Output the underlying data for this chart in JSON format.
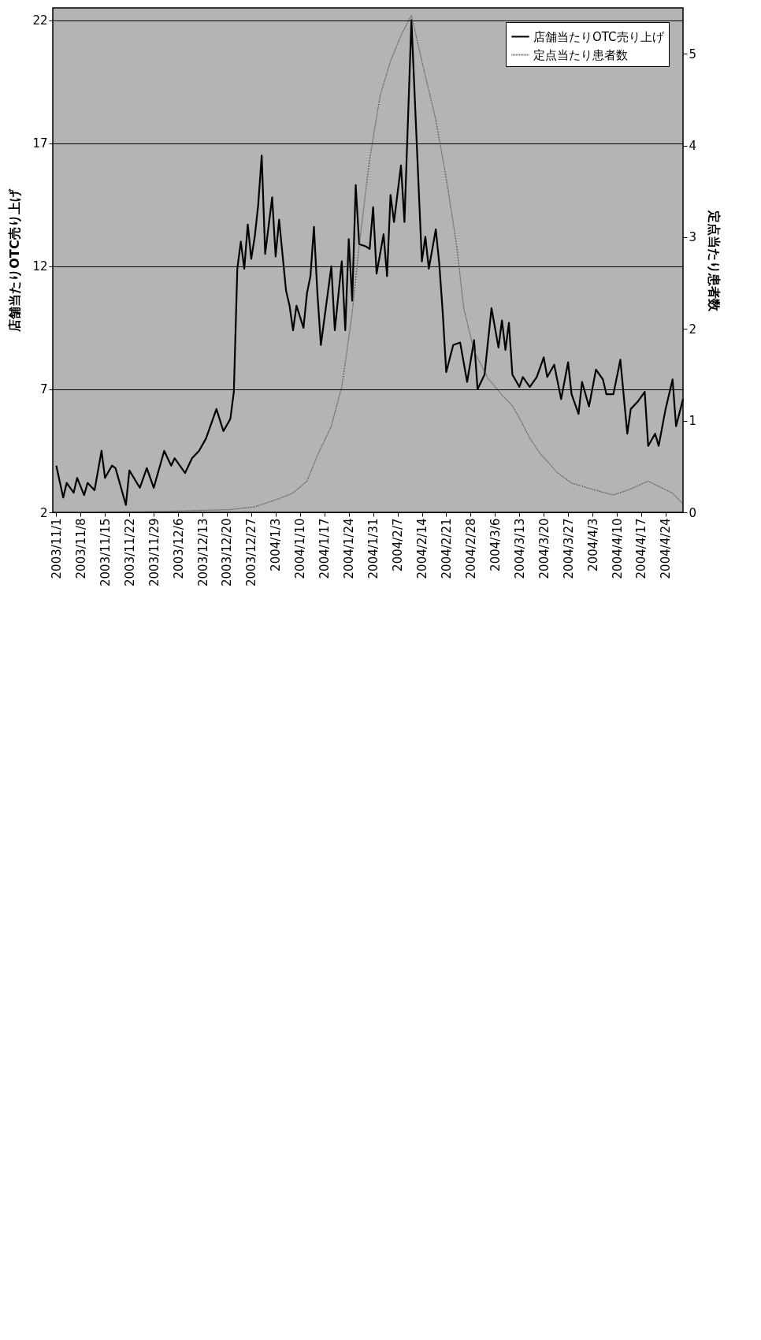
{
  "chart_data": {
    "type": "line",
    "ylabel": "店舗当たりOTC売り上げ",
    "y2label": "定点当たり患者数",
    "xlim": [
      "2003-10-31",
      "2004-04-29"
    ],
    "xticks": [
      {
        "value": "2003-11-01",
        "label": "2003/11/1"
      },
      {
        "value": "2003-11-08",
        "label": "2003/11/8"
      },
      {
        "value": "2003-11-15",
        "label": "2003/11/15"
      },
      {
        "value": "2003-11-22",
        "label": "2003/11/22"
      },
      {
        "value": "2003-11-29",
        "label": "2003/11/29"
      },
      {
        "value": "2003-12-06",
        "label": "2003/12/6"
      },
      {
        "value": "2003-12-13",
        "label": "2003/12/13"
      },
      {
        "value": "2003-12-20",
        "label": "2003/12/20"
      },
      {
        "value": "2003-12-27",
        "label": "2003/12/27"
      },
      {
        "value": "2004-01-03",
        "label": "2004/1/3"
      },
      {
        "value": "2004-01-10",
        "label": "2004/1/10"
      },
      {
        "value": "2004-01-17",
        "label": "2004/1/17"
      },
      {
        "value": "2004-01-24",
        "label": "2004/1/24"
      },
      {
        "value": "2004-01-31",
        "label": "2004/1/31"
      },
      {
        "value": "2004-02-07",
        "label": "2004/2/7"
      },
      {
        "value": "2004-02-14",
        "label": "2004/2/14"
      },
      {
        "value": "2004-02-21",
        "label": "2004/2/21"
      },
      {
        "value": "2004-02-28",
        "label": "2004/2/28"
      },
      {
        "value": "2004-03-06",
        "label": "2004/3/6"
      },
      {
        "value": "2004-03-13",
        "label": "2004/3/13"
      },
      {
        "value": "2004-03-20",
        "label": "2004/3/20"
      },
      {
        "value": "2004-03-27",
        "label": "2004/3/27"
      },
      {
        "value": "2004-04-03",
        "label": "2004/4/3"
      },
      {
        "value": "2004-04-10",
        "label": "2004/4/10"
      },
      {
        "value": "2004-04-17",
        "label": "2004/4/17"
      },
      {
        "value": "2004-04-24",
        "label": "2004/4/24"
      }
    ],
    "ylim": [
      2,
      22.5
    ],
    "yticks": [
      2,
      7,
      12,
      17,
      22
    ],
    "y2lim": [
      0,
      5.5
    ],
    "y2ticks": [
      0,
      1,
      2,
      3,
      4,
      5
    ],
    "grid": "y",
    "legend": "top right",
    "series": [
      {
        "name": "店舗当たりOTC売り上げ",
        "color": "#000000",
        "line_style": "solid",
        "x": [
          "2003-11-01",
          "2003-11-03",
          "2003-11-04",
          "2003-11-06",
          "2003-11-07",
          "2003-11-09",
          "2003-11-10",
          "2003-11-12",
          "2003-11-14",
          "2003-11-15",
          "2003-11-17",
          "2003-11-18",
          "2003-11-21",
          "2003-11-22",
          "2003-11-25",
          "2003-11-27",
          "2003-11-29",
          "2003-12-02",
          "2003-12-04",
          "2003-12-05",
          "2003-12-08",
          "2003-12-10",
          "2003-12-12",
          "2003-12-14",
          "2003-12-17",
          "2003-12-19",
          "2003-12-21",
          "2003-12-22",
          "2003-12-23",
          "2003-12-24",
          "2003-12-25",
          "2003-12-26",
          "2003-12-27",
          "2003-12-28",
          "2003-12-29",
          "2003-12-30",
          "2003-12-31",
          "2004-01-02",
          "2004-01-03",
          "2004-01-04",
          "2004-01-06",
          "2004-01-07",
          "2004-01-08",
          "2004-01-09",
          "2004-01-11",
          "2004-01-12",
          "2004-01-13",
          "2004-01-14",
          "2004-01-15",
          "2004-01-16",
          "2004-01-19",
          "2004-01-20",
          "2004-01-22",
          "2004-01-23",
          "2004-01-24",
          "2004-01-25",
          "2004-01-26",
          "2004-01-27",
          "2004-01-29",
          "2004-01-30",
          "2004-01-31",
          "2004-02-01",
          "2004-02-03",
          "2004-02-04",
          "2004-02-05",
          "2004-02-06",
          "2004-02-08",
          "2004-02-09",
          "2004-02-11",
          "2004-02-14",
          "2004-02-15",
          "2004-02-16",
          "2004-02-18",
          "2004-02-19",
          "2004-02-20",
          "2004-02-21",
          "2004-02-23",
          "2004-02-25",
          "2004-02-27",
          "2004-02-29",
          "2004-03-01",
          "2004-03-03",
          "2004-03-05",
          "2004-03-07",
          "2004-03-08",
          "2004-03-09",
          "2004-03-10",
          "2004-03-11",
          "2004-03-13",
          "2004-03-14",
          "2004-03-16",
          "2004-03-18",
          "2004-03-20",
          "2004-03-21",
          "2004-03-23",
          "2004-03-25",
          "2004-03-27",
          "2004-03-28",
          "2004-03-30",
          "2004-03-31",
          "2004-04-02",
          "2004-04-04",
          "2004-04-06",
          "2004-04-07",
          "2004-04-09",
          "2004-04-11",
          "2004-04-13",
          "2004-04-14",
          "2004-04-16",
          "2004-04-18",
          "2004-04-19",
          "2004-04-21",
          "2004-04-22",
          "2004-04-24",
          "2004-04-26",
          "2004-04-27",
          "2004-04-29"
        ],
        "values": [
          3.9,
          2.6,
          3.2,
          2.8,
          3.4,
          2.7,
          3.2,
          2.9,
          4.5,
          3.4,
          3.9,
          3.8,
          2.3,
          3.7,
          3.0,
          3.8,
          3.0,
          4.5,
          3.9,
          4.2,
          3.6,
          4.2,
          4.5,
          5.0,
          6.2,
          5.3,
          5.8,
          6.9,
          11.9,
          13.0,
          11.9,
          13.7,
          12.3,
          13.2,
          14.5,
          16.5,
          12.5,
          14.8,
          12.4,
          13.9,
          11.0,
          10.4,
          9.4,
          10.4,
          9.5,
          10.9,
          11.6,
          13.6,
          10.9,
          8.8,
          12.0,
          9.4,
          12.2,
          9.4,
          13.1,
          10.6,
          15.3,
          12.9,
          12.8,
          12.7,
          14.4,
          11.7,
          13.3,
          11.6,
          14.9,
          13.8,
          16.1,
          13.8,
          22.0,
          12.2,
          13.2,
          11.9,
          13.5,
          12.1,
          10.1,
          7.7,
          8.8,
          8.9,
          7.3,
          9.0,
          7.0,
          7.6,
          10.3,
          8.7,
          9.8,
          8.6,
          9.7,
          7.6,
          7.1,
          7.5,
          7.1,
          7.5,
          8.3,
          7.5,
          8.0,
          6.6,
          8.1,
          6.8,
          6.0,
          7.3,
          6.3,
          7.8,
          7.4,
          6.8,
          6.8,
          8.2,
          5.2,
          6.2,
          6.5,
          6.9,
          4.7,
          5.2,
          4.7,
          6.2,
          7.4,
          5.5,
          6.6
        ]
      },
      {
        "name": "定点当たり患者数",
        "color": "#505050",
        "line_style": "dotted",
        "axis": "y2",
        "x": [
          "2003-11-01",
          "2003-12-01",
          "2003-12-21",
          "2003-12-28",
          "2004-01-04",
          "2004-01-08",
          "2004-01-12",
          "2004-01-15",
          "2004-01-19",
          "2004-01-22",
          "2004-01-23",
          "2004-01-25",
          "2004-01-27",
          "2004-01-30",
          "2004-02-02",
          "2004-02-05",
          "2004-02-08",
          "2004-02-11",
          "2004-02-14",
          "2004-02-18",
          "2004-02-21",
          "2004-02-24",
          "2004-02-26",
          "2004-02-29",
          "2004-03-04",
          "2004-03-08",
          "2004-03-11",
          "2004-03-13",
          "2004-03-16",
          "2004-03-19",
          "2004-03-24",
          "2004-03-28",
          "2004-04-04",
          "2004-04-09",
          "2004-04-13",
          "2004-04-19",
          "2004-04-26",
          "2004-04-29"
        ],
        "values": [
          0.0,
          0.01,
          0.03,
          0.06,
          0.15,
          0.21,
          0.34,
          0.62,
          0.94,
          1.37,
          1.63,
          2.18,
          2.91,
          3.85,
          4.54,
          4.92,
          5.2,
          5.42,
          4.92,
          4.28,
          3.64,
          2.91,
          2.23,
          1.76,
          1.46,
          1.28,
          1.16,
          1.03,
          0.81,
          0.64,
          0.43,
          0.32,
          0.24,
          0.19,
          0.24,
          0.34,
          0.21,
          0.09
        ]
      }
    ]
  }
}
